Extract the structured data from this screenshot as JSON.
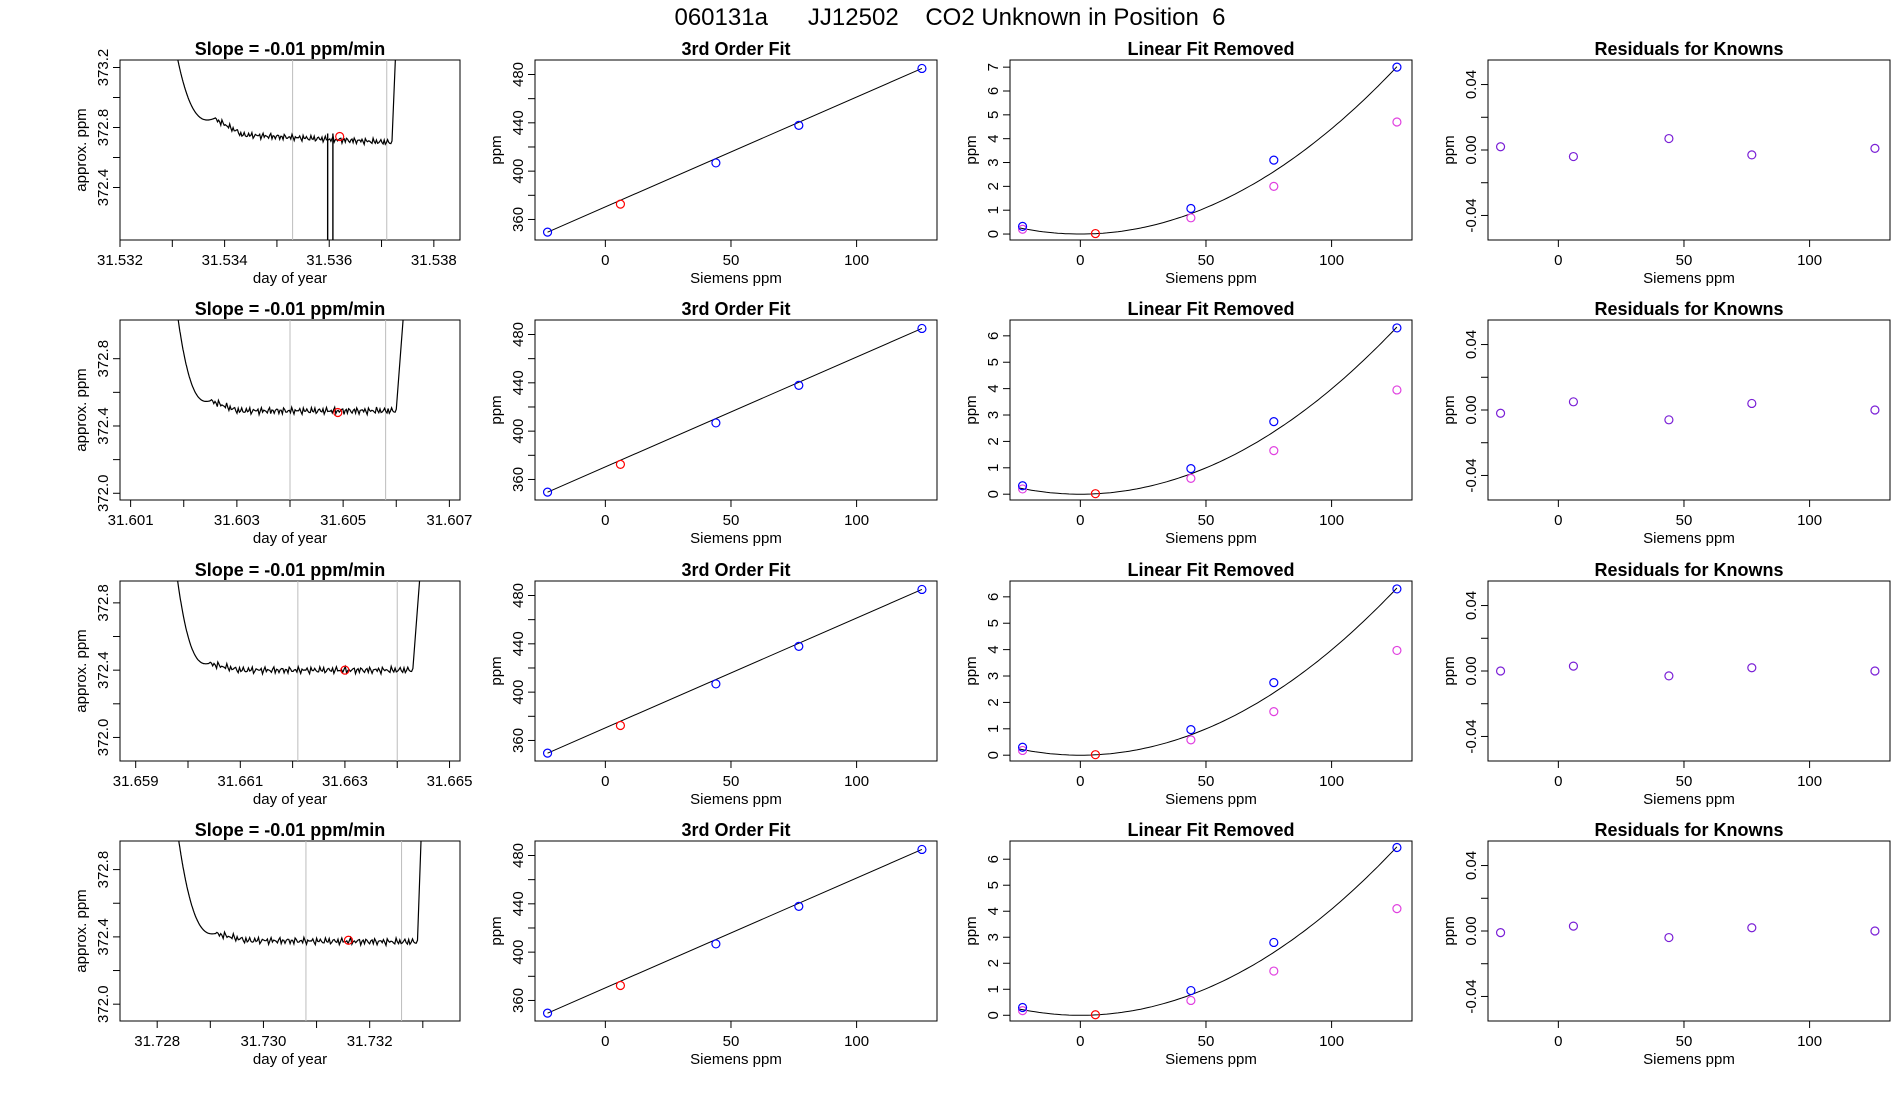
{
  "page_title": "060131a      JJ12502    CO2 Unknown in Position  6",
  "colors": {
    "trace": "#000000",
    "known": "#0000ff",
    "unknown": "#ff0000",
    "raw": "#e040e0",
    "residual": "#7a1fd6",
    "gridline": "#bdbdbd"
  },
  "chart_data": [
    {
      "id": "row1-drift",
      "type": "line",
      "title": "Slope =  -0.01  ppm/min",
      "xlabel": "day of year",
      "ylabel": "approx. ppm",
      "xlim": [
        31.532,
        31.5385
      ],
      "ylim": [
        372.05,
        373.25
      ],
      "xticks": [
        31.532,
        31.533,
        31.534,
        31.535,
        31.536,
        31.537,
        31.538
      ],
      "xtick_labels": [
        "31.532",
        "",
        "31.534",
        "",
        "31.536",
        "",
        "31.538"
      ],
      "yticks": [
        372.4,
        372.8,
        373.2
      ],
      "ytick_labels": [
        "372.4",
        "372.8",
        "373.2"
      ],
      "extra_yticks": [
        372.6,
        373.0
      ],
      "vlines": [
        31.5353,
        31.5371
      ],
      "spikes": [
        31.53597,
        31.53607
      ],
      "rise_start": 31.533,
      "rise_end": 31.5373,
      "plateau_start": 31.5338,
      "plateau_end": 31.5372,
      "plateau_level": 372.76,
      "plateau_end_level": 372.7,
      "early_bump": 372.86,
      "marker": {
        "x": 31.5362,
        "y": 372.74
      }
    },
    {
      "id": "row1-fit",
      "type": "line",
      "title": "3rd Order Fit",
      "xlabel": "Siemens ppm",
      "ylabel": "ppm",
      "xlim": [
        -28,
        132
      ],
      "ylim": [
        343,
        492
      ],
      "xticks": [
        0,
        50,
        100
      ],
      "xtick_labels": [
        "0",
        "50",
        "100"
      ],
      "yticks": [
        360,
        400,
        440,
        480
      ],
      "ytick_labels": [
        "360",
        "400",
        "440",
        "480"
      ],
      "extra_yticks": [
        380,
        420,
        460
      ],
      "knowns": [
        {
          "x": -23,
          "y": 349.5
        },
        {
          "x": 44,
          "y": 406.8
        },
        {
          "x": 77,
          "y": 437.9
        },
        {
          "x": 126,
          "y": 485.0
        }
      ],
      "unknown": {
        "x": 6,
        "y": 372.7
      },
      "fit": [
        [
          -23,
          349.5
        ],
        [
          126,
          485.0
        ]
      ]
    },
    {
      "id": "row1-linear-removed",
      "type": "scatter",
      "title": "Linear Fit Removed",
      "xlabel": "Siemens ppm",
      "ylabel": "ppm",
      "xlim": [
        -28,
        132
      ],
      "ylim": [
        -0.25,
        7.3
      ],
      "xticks": [
        0,
        50,
        100
      ],
      "xtick_labels": [
        "0",
        "50",
        "100"
      ],
      "yticks": [
        0,
        1,
        2,
        3,
        4,
        5,
        6,
        7
      ],
      "ytick_labels": [
        "0",
        "1",
        "2",
        "3",
        "4",
        "5",
        "6",
        "7"
      ],
      "knowns": [
        {
          "x": -23,
          "y": 0.32
        },
        {
          "x": 44,
          "y": 1.07
        },
        {
          "x": 77,
          "y": 3.1
        },
        {
          "x": 126,
          "y": 7.0
        }
      ],
      "raw": [
        {
          "x": -23,
          "y": 0.2
        },
        {
          "x": 44,
          "y": 0.68
        },
        {
          "x": 77,
          "y": 2.0
        },
        {
          "x": 126,
          "y": 4.7
        }
      ],
      "unknown": {
        "x": 6,
        "y": 0.02
      },
      "curve": {
        "vertex_x": 0,
        "a": 0.000442
      }
    },
    {
      "id": "row1-residuals",
      "type": "scatter",
      "title": "Residuals for Knowns",
      "xlabel": "Siemens ppm",
      "ylabel": "ppm",
      "xlim": [
        -28,
        132
      ],
      "ylim": [
        -0.055,
        0.055
      ],
      "xticks": [
        0,
        50,
        100
      ],
      "xtick_labels": [
        "0",
        "50",
        "100"
      ],
      "yticks": [
        -0.04,
        0.0,
        0.04
      ],
      "ytick_labels": [
        "-0.04",
        "0.00",
        "0.04"
      ],
      "extra_yticks": [
        -0.02,
        0.02
      ],
      "points": [
        {
          "x": -23,
          "y": 0.002
        },
        {
          "x": 6,
          "y": -0.004
        },
        {
          "x": 44,
          "y": 0.007
        },
        {
          "x": 77,
          "y": -0.003
        },
        {
          "x": 126,
          "y": 0.001
        }
      ]
    },
    {
      "id": "row2-drift",
      "type": "line",
      "title": "Slope =  -0.01  ppm/min",
      "xlabel": "day of year",
      "ylabel": "approx. ppm",
      "xlim": [
        31.6008,
        31.6072
      ],
      "ylim": [
        371.96,
        373.03
      ],
      "xticks": [
        31.601,
        31.602,
        31.603,
        31.604,
        31.605,
        31.606,
        31.607
      ],
      "xtick_labels": [
        "31.601",
        "",
        "31.603",
        "",
        "31.605",
        "",
        "31.607"
      ],
      "yticks": [
        372.0,
        372.4,
        372.8
      ],
      "ytick_labels": [
        "372.0",
        "372.4",
        "372.8"
      ],
      "extra_yticks": [
        372.2,
        372.6
      ],
      "vlines": [
        31.604,
        31.6058
      ],
      "spikes": [],
      "rise_start": 31.6018,
      "rise_end": 31.6062,
      "plateau_start": 31.6025,
      "plateau_end": 31.606,
      "plateau_level": 372.49,
      "plateau_end_level": 372.49,
      "early_bump": 372.55,
      "marker": {
        "x": 31.6049,
        "y": 372.48
      }
    },
    {
      "id": "row2-fit",
      "type": "line",
      "title": "3rd Order Fit",
      "xlabel": "Siemens ppm",
      "ylabel": "ppm",
      "xlim": [
        -28,
        132
      ],
      "ylim": [
        343,
        492
      ],
      "xticks": [
        0,
        50,
        100
      ],
      "xtick_labels": [
        "0",
        "50",
        "100"
      ],
      "yticks": [
        360,
        400,
        440,
        480
      ],
      "ytick_labels": [
        "360",
        "400",
        "440",
        "480"
      ],
      "extra_yticks": [
        380,
        420,
        460
      ],
      "knowns": [
        {
          "x": -23,
          "y": 349.5
        },
        {
          "x": 44,
          "y": 406.8
        },
        {
          "x": 77,
          "y": 437.9
        },
        {
          "x": 126,
          "y": 485.0
        }
      ],
      "unknown": {
        "x": 6,
        "y": 372.5
      },
      "fit": [
        [
          -23,
          349.5
        ],
        [
          126,
          485.0
        ]
      ]
    },
    {
      "id": "row2-linear-removed",
      "type": "scatter",
      "title": "Linear Fit Removed",
      "xlabel": "Siemens ppm",
      "ylabel": "ppm",
      "xlim": [
        -28,
        132
      ],
      "ylim": [
        -0.22,
        6.6
      ],
      "xticks": [
        0,
        50,
        100
      ],
      "xtick_labels": [
        "0",
        "50",
        "100"
      ],
      "yticks": [
        0,
        1,
        2,
        3,
        4,
        5,
        6
      ],
      "ytick_labels": [
        "0",
        "1",
        "2",
        "3",
        "4",
        "5",
        "6"
      ],
      "knowns": [
        {
          "x": -23,
          "y": 0.32
        },
        {
          "x": 44,
          "y": 0.97
        },
        {
          "x": 77,
          "y": 2.75
        },
        {
          "x": 126,
          "y": 6.3
        }
      ],
      "raw": [
        {
          "x": -23,
          "y": 0.2
        },
        {
          "x": 44,
          "y": 0.6
        },
        {
          "x": 77,
          "y": 1.65
        },
        {
          "x": 126,
          "y": 3.95
        }
      ],
      "unknown": {
        "x": 6,
        "y": 0.02
      },
      "curve": {
        "vertex_x": 0,
        "a": 0.000399
      }
    },
    {
      "id": "row2-residuals",
      "type": "scatter",
      "title": "Residuals for Knowns",
      "xlabel": "Siemens ppm",
      "ylabel": "ppm",
      "xlim": [
        -28,
        132
      ],
      "ylim": [
        -0.055,
        0.055
      ],
      "xticks": [
        0,
        50,
        100
      ],
      "xtick_labels": [
        "0",
        "50",
        "100"
      ],
      "yticks": [
        -0.04,
        0.0,
        0.04
      ],
      "ytick_labels": [
        "-0.04",
        "0.00",
        "0.04"
      ],
      "extra_yticks": [
        -0.02,
        0.02
      ],
      "points": [
        {
          "x": -23,
          "y": -0.002
        },
        {
          "x": 6,
          "y": 0.005
        },
        {
          "x": 44,
          "y": -0.006
        },
        {
          "x": 77,
          "y": 0.004
        },
        {
          "x": 126,
          "y": 0.0
        }
      ]
    },
    {
      "id": "row3-drift",
      "type": "line",
      "title": "Slope =  -0.01  ppm/min",
      "xlabel": "day of year",
      "ylabel": "approx. ppm",
      "xlim": [
        31.6587,
        31.6652
      ],
      "ylim": [
        371.86,
        372.93
      ],
      "xticks": [
        31.659,
        31.66,
        31.661,
        31.662,
        31.663,
        31.664,
        31.665
      ],
      "xtick_labels": [
        "31.659",
        "",
        "31.661",
        "",
        "31.663",
        "",
        "31.665"
      ],
      "yticks": [
        372.0,
        372.4,
        372.8
      ],
      "ytick_labels": [
        "372.0",
        "372.4",
        "372.8"
      ],
      "extra_yticks": [
        372.2,
        372.6
      ],
      "vlines": [
        31.6621,
        31.664
      ],
      "spikes": [],
      "rise_start": 31.6597,
      "rise_end": 31.6645,
      "plateau_start": 31.6604,
      "plateau_end": 31.6643,
      "plateau_level": 372.4,
      "plateau_end_level": 372.4,
      "early_bump": 372.44,
      "marker": {
        "x": 31.663,
        "y": 372.4
      }
    },
    {
      "id": "row3-fit",
      "type": "line",
      "title": "3rd Order Fit",
      "xlabel": "Siemens ppm",
      "ylabel": "ppm",
      "xlim": [
        -28,
        132
      ],
      "ylim": [
        343,
        492
      ],
      "xticks": [
        0,
        50,
        100
      ],
      "xtick_labels": [
        "0",
        "50",
        "100"
      ],
      "yticks": [
        360,
        400,
        440,
        480
      ],
      "ytick_labels": [
        "360",
        "400",
        "440",
        "480"
      ],
      "extra_yticks": [
        380,
        420,
        460
      ],
      "knowns": [
        {
          "x": -23,
          "y": 349.5
        },
        {
          "x": 44,
          "y": 406.8
        },
        {
          "x": 77,
          "y": 437.9
        },
        {
          "x": 126,
          "y": 485.0
        }
      ],
      "unknown": {
        "x": 6,
        "y": 372.4
      },
      "fit": [
        [
          -23,
          349.5
        ],
        [
          126,
          485.0
        ]
      ]
    },
    {
      "id": "row3-linear-removed",
      "type": "scatter",
      "title": "Linear Fit Removed",
      "xlabel": "Siemens ppm",
      "ylabel": "ppm",
      "xlim": [
        -28,
        132
      ],
      "ylim": [
        -0.22,
        6.6
      ],
      "xticks": [
        0,
        50,
        100
      ],
      "xtick_labels": [
        "0",
        "50",
        "100"
      ],
      "yticks": [
        0,
        1,
        2,
        3,
        4,
        5,
        6
      ],
      "ytick_labels": [
        "0",
        "1",
        "2",
        "3",
        "4",
        "5",
        "6"
      ],
      "knowns": [
        {
          "x": -23,
          "y": 0.3
        },
        {
          "x": 44,
          "y": 0.97
        },
        {
          "x": 77,
          "y": 2.75
        },
        {
          "x": 126,
          "y": 6.3
        }
      ],
      "raw": [
        {
          "x": -23,
          "y": 0.18
        },
        {
          "x": 44,
          "y": 0.58
        },
        {
          "x": 77,
          "y": 1.65
        },
        {
          "x": 126,
          "y": 3.97
        }
      ],
      "unknown": {
        "x": 6,
        "y": 0.02
      },
      "curve": {
        "vertex_x": 0,
        "a": 0.000399
      }
    },
    {
      "id": "row3-residuals",
      "type": "scatter",
      "title": "Residuals for Knowns",
      "xlabel": "Siemens ppm",
      "ylabel": "ppm",
      "xlim": [
        -28,
        132
      ],
      "ylim": [
        -0.055,
        0.055
      ],
      "xticks": [
        0,
        50,
        100
      ],
      "xtick_labels": [
        "0",
        "50",
        "100"
      ],
      "yticks": [
        -0.04,
        0.0,
        0.04
      ],
      "ytick_labels": [
        "-0.04",
        "0.00",
        "0.04"
      ],
      "extra_yticks": [
        -0.02,
        0.02
      ],
      "points": [
        {
          "x": -23,
          "y": 0.0
        },
        {
          "x": 6,
          "y": 0.003
        },
        {
          "x": 44,
          "y": -0.003
        },
        {
          "x": 77,
          "y": 0.002
        },
        {
          "x": 126,
          "y": 0.0
        }
      ]
    },
    {
      "id": "row4-drift",
      "type": "line",
      "title": "Slope =  -0.01  ppm/min",
      "xlabel": "day of year",
      "ylabel": "approx. ppm",
      "xlim": [
        31.7273,
        31.7337
      ],
      "ylim": [
        371.9,
        372.97
      ],
      "xticks": [
        31.728,
        31.729,
        31.73,
        31.731,
        31.732,
        31.733
      ],
      "xtick_labels": [
        "31.728",
        "",
        "31.730",
        "",
        "31.732",
        ""
      ],
      "yticks": [
        372.0,
        372.4,
        372.8
      ],
      "ytick_labels": [
        "372.0",
        "372.4",
        "372.8"
      ],
      "extra_yticks": [
        372.2,
        372.6
      ],
      "vlines": [
        31.7308,
        31.7326
      ],
      "spikes": [],
      "rise_start": 31.7283,
      "rise_end": 31.733,
      "plateau_start": 31.7291,
      "plateau_end": 31.7329,
      "plateau_level": 372.38,
      "plateau_end_level": 372.37,
      "early_bump": 372.42,
      "marker": {
        "x": 31.7316,
        "y": 372.38
      }
    },
    {
      "id": "row4-fit",
      "type": "line",
      "title": "3rd Order Fit",
      "xlabel": "Siemens ppm",
      "ylabel": "ppm",
      "xlim": [
        -28,
        132
      ],
      "ylim": [
        343,
        492
      ],
      "xticks": [
        0,
        50,
        100
      ],
      "xtick_labels": [
        "0",
        "50",
        "100"
      ],
      "yticks": [
        360,
        400,
        440,
        480
      ],
      "ytick_labels": [
        "360",
        "400",
        "440",
        "480"
      ],
      "extra_yticks": [
        380,
        420,
        460
      ],
      "knowns": [
        {
          "x": -23,
          "y": 349.5
        },
        {
          "x": 44,
          "y": 406.8
        },
        {
          "x": 77,
          "y": 437.9
        },
        {
          "x": 126,
          "y": 485.0
        }
      ],
      "unknown": {
        "x": 6,
        "y": 372.4
      },
      "fit": [
        [
          -23,
          349.5
        ],
        [
          126,
          485.0
        ]
      ]
    },
    {
      "id": "row4-linear-removed",
      "type": "scatter",
      "title": "Linear Fit Removed",
      "xlabel": "Siemens ppm",
      "ylabel": "ppm",
      "xlim": [
        -28,
        132
      ],
      "ylim": [
        -0.22,
        6.7
      ],
      "xticks": [
        0,
        50,
        100
      ],
      "xtick_labels": [
        "0",
        "50",
        "100"
      ],
      "yticks": [
        0,
        1,
        2,
        3,
        4,
        5,
        6
      ],
      "ytick_labels": [
        "0",
        "1",
        "2",
        "3",
        "4",
        "5",
        "6"
      ],
      "knowns": [
        {
          "x": -23,
          "y": 0.3
        },
        {
          "x": 44,
          "y": 0.95
        },
        {
          "x": 77,
          "y": 2.8
        },
        {
          "x": 126,
          "y": 6.45
        }
      ],
      "raw": [
        {
          "x": -23,
          "y": 0.18
        },
        {
          "x": 44,
          "y": 0.57
        },
        {
          "x": 77,
          "y": 1.7
        },
        {
          "x": 126,
          "y": 4.1
        }
      ],
      "unknown": {
        "x": 6,
        "y": 0.02
      },
      "curve": {
        "vertex_x": 0,
        "a": 0.000408
      }
    },
    {
      "id": "row4-residuals",
      "type": "scatter",
      "title": "Residuals for Knowns",
      "xlabel": "Siemens ppm",
      "ylabel": "ppm",
      "xlim": [
        -28,
        132
      ],
      "ylim": [
        -0.055,
        0.055
      ],
      "xticks": [
        0,
        50,
        100
      ],
      "xtick_labels": [
        "0",
        "50",
        "100"
      ],
      "yticks": [
        -0.04,
        0.0,
        0.04
      ],
      "ytick_labels": [
        "-0.04",
        "0.00",
        "0.04"
      ],
      "extra_yticks": [
        -0.02,
        0.02
      ],
      "points": [
        {
          "x": -23,
          "y": -0.001
        },
        {
          "x": 6,
          "y": 0.003
        },
        {
          "x": 44,
          "y": -0.004
        },
        {
          "x": 77,
          "y": 0.002
        },
        {
          "x": 126,
          "y": 0.0
        }
      ]
    }
  ]
}
